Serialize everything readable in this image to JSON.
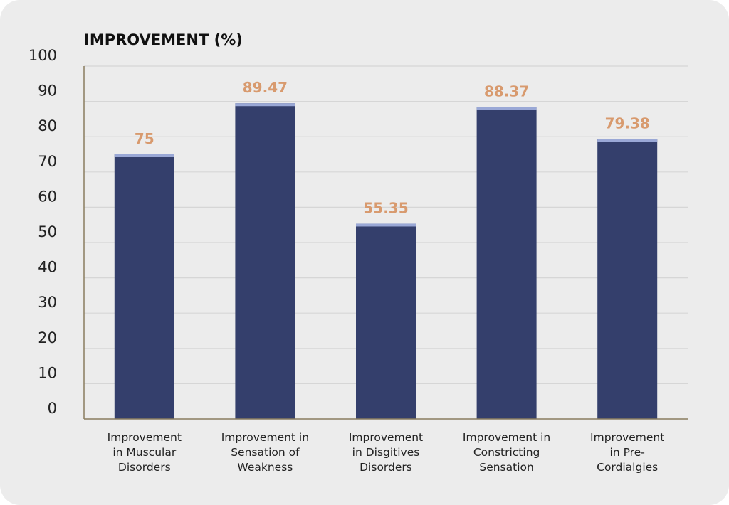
{
  "chart_data": {
    "type": "bar",
    "ylabel": "IMPROVEMENT  (%)",
    "xlabel": "",
    "ylim": [
      0,
      100
    ],
    "yticks": [
      0,
      10,
      20,
      30,
      40,
      50,
      60,
      70,
      80,
      90,
      100
    ],
    "grid": true,
    "categories": [
      [
        "Improvement",
        "in Muscular",
        "Disorders"
      ],
      [
        "Improvement in",
        "Sensation of",
        "Weakness"
      ],
      [
        "Improvement",
        "in Disgitives",
        "Disorders"
      ],
      [
        "Improvement in",
        "Constricting",
        "Sensation"
      ],
      [
        "Improvement",
        "in Pre-",
        "Cordialgies"
      ]
    ],
    "values": [
      75,
      89.47,
      55.35,
      88.37,
      79.38
    ],
    "data_labels": [
      "75",
      "89.47",
      "55.35",
      "88.37",
      "79.38"
    ]
  },
  "colors": {
    "bar": "#343f6c",
    "bar_cap": "#9aa8d6",
    "data_label": "#d89a6e",
    "grid": "#d6d6d6",
    "axis": "#8a7d5e"
  }
}
